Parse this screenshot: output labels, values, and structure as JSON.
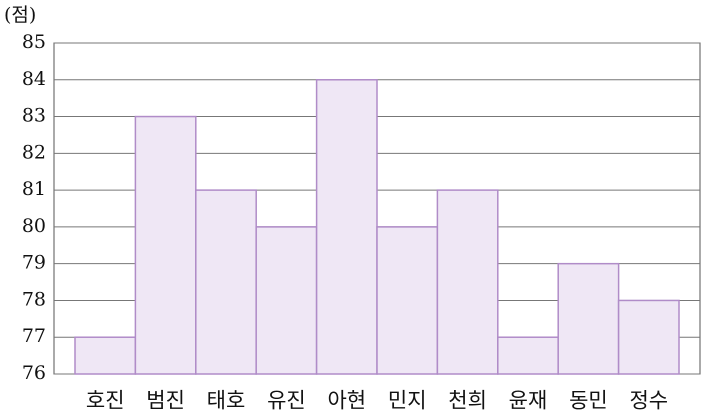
{
  "chart_data": {
    "type": "bar",
    "y_label": "(점)",
    "categories": [
      "호진",
      "범진",
      "태호",
      "유진",
      "아현",
      "민지",
      "천희",
      "윤재",
      "동민",
      "정수"
    ],
    "values": [
      77,
      83,
      81,
      80,
      84,
      80,
      81,
      77,
      79,
      78
    ],
    "color": "#efe7f5",
    "edge_color": "#b08cc8",
    "ylim": [
      76,
      85
    ],
    "yticks": [
      76,
      77,
      78,
      79,
      80,
      81,
      82,
      83,
      84,
      85
    ],
    "grid": true
  }
}
